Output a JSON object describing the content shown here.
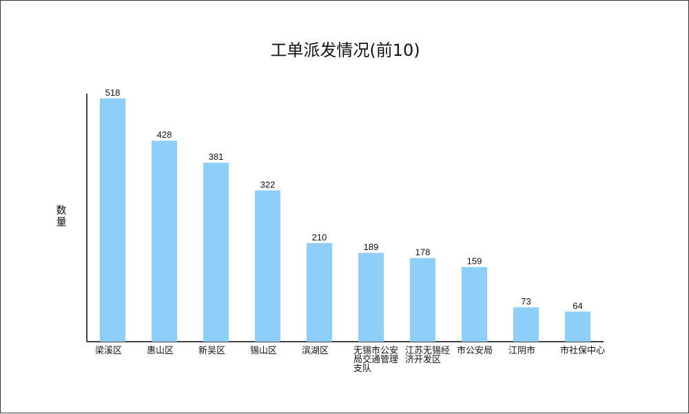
{
  "chart_data": {
    "type": "bar",
    "title": "工单派发情况(前10)",
    "xlabel": "",
    "ylabel": "数量",
    "categories": [
      "梁溪区",
      "惠山区",
      "新吴区",
      "锡山区",
      "滨湖区",
      "无锡市公安局交通管理支队",
      "江苏无锡经济开发区",
      "市公安局",
      "江阴市",
      "市社保中心"
    ],
    "values": [
      518,
      428,
      381,
      322,
      210,
      189,
      178,
      159,
      73,
      64
    ],
    "ylim": [
      0,
      550
    ],
    "grid": false,
    "legend": "none",
    "bar_color": "#8ecff9",
    "axis_color": "#000000"
  }
}
